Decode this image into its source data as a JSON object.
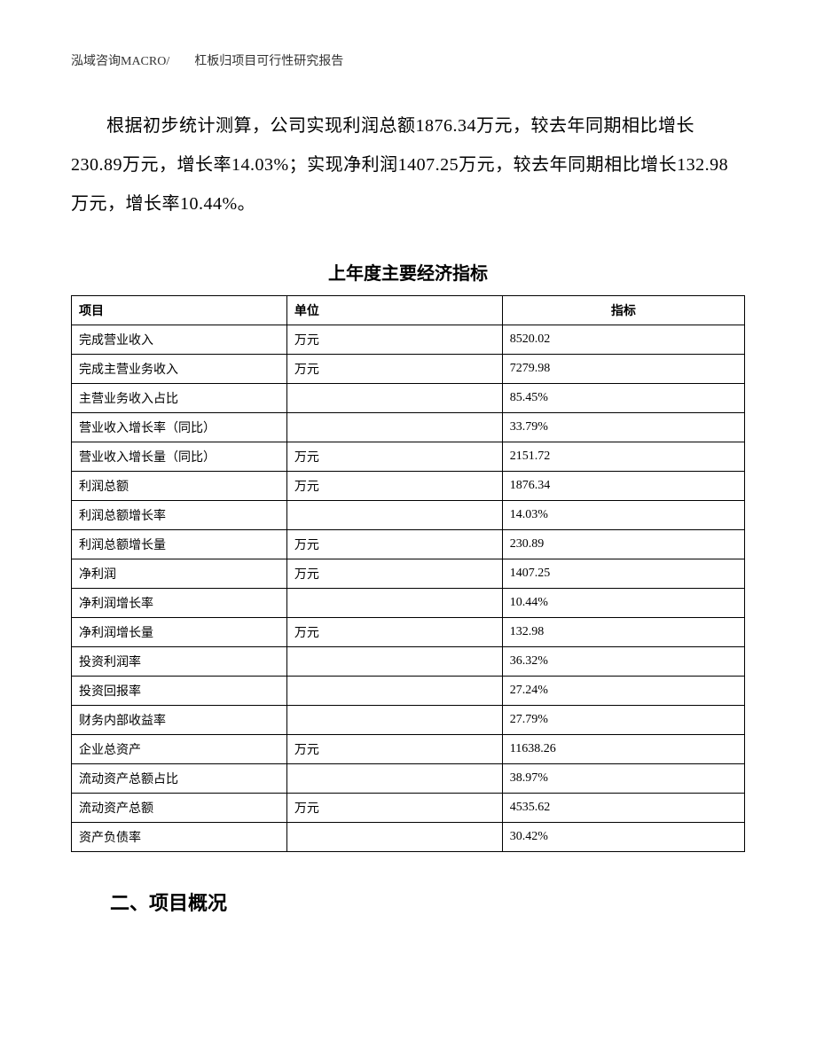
{
  "header": "泓域咨询MACRO/　　杠板归项目可行性研究报告",
  "paragraph": "根据初步统计测算，公司实现利润总额1876.34万元，较去年同期相比增长230.89万元，增长率14.03%；实现净利润1407.25万元，较去年同期相比增长132.98万元，增长率10.44%。",
  "table": {
    "title": "上年度主要经济指标",
    "columns": [
      "项目",
      "单位",
      "指标"
    ],
    "rows": [
      [
        "完成营业收入",
        "万元",
        "8520.02"
      ],
      [
        "完成主营业务收入",
        "万元",
        "7279.98"
      ],
      [
        "主营业务收入占比",
        "",
        "85.45%"
      ],
      [
        "营业收入增长率（同比）",
        "",
        "33.79%"
      ],
      [
        "营业收入增长量（同比）",
        "万元",
        "2151.72"
      ],
      [
        "利润总额",
        "万元",
        "1876.34"
      ],
      [
        "利润总额增长率",
        "",
        "14.03%"
      ],
      [
        "利润总额增长量",
        "万元",
        "230.89"
      ],
      [
        "净利润",
        "万元",
        "1407.25"
      ],
      [
        "净利润增长率",
        "",
        "10.44%"
      ],
      [
        "净利润增长量",
        "万元",
        "132.98"
      ],
      [
        "投资利润率",
        "",
        "36.32%"
      ],
      [
        "投资回报率",
        "",
        "27.24%"
      ],
      [
        "财务内部收益率",
        "",
        "27.79%"
      ],
      [
        "企业总资产",
        "万元",
        "11638.26"
      ],
      [
        "流动资产总额占比",
        "",
        "38.97%"
      ],
      [
        "流动资产总额",
        "万元",
        "4535.62"
      ],
      [
        "资产负债率",
        "",
        "30.42%"
      ]
    ]
  },
  "sectionHeading": "二、项目概况"
}
